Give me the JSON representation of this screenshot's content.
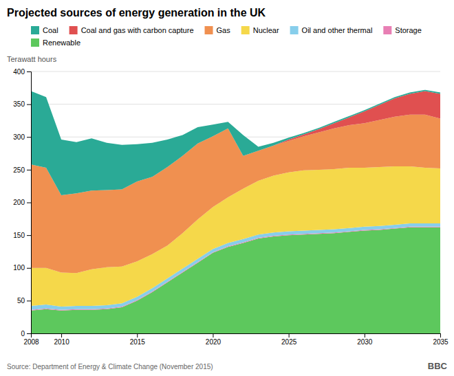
{
  "chart_data": {
    "type": "area",
    "stacked": true,
    "title": "Projected sources of energy generation in the UK",
    "y_label": "Terawatt hours",
    "annotations": [
      "Source: Department of Energy & Climate Change (November 2015)",
      "BBC"
    ],
    "x": [
      2008,
      2009,
      2010,
      2011,
      2012,
      2013,
      2014,
      2015,
      2016,
      2017,
      2018,
      2019,
      2020,
      2021,
      2022,
      2023,
      2024,
      2025,
      2026,
      2027,
      2028,
      2029,
      2030,
      2031,
      2032,
      2033,
      2034,
      2035
    ],
    "xlim": [
      2008,
      2035
    ],
    "xticks": [
      2008,
      2010,
      2015,
      2020,
      2025,
      2030,
      2035
    ],
    "ylim": [
      0,
      400
    ],
    "yticks": [
      0,
      50,
      100,
      150,
      200,
      250,
      300,
      350,
      400
    ],
    "grid": true,
    "legend": "top",
    "series": [
      {
        "name": "Renewable",
        "color": "#5dc85d",
        "values": [
          35,
          37,
          35,
          36,
          36,
          37,
          40,
          50,
          63,
          78,
          93,
          108,
          123,
          132,
          138,
          145,
          148,
          150,
          151,
          152,
          153,
          155,
          157,
          158,
          160,
          162,
          162,
          162
        ]
      },
      {
        "name": "Storage",
        "color": "#e87fb4",
        "values": [
          1,
          1,
          1,
          1,
          1,
          1,
          1,
          1,
          1,
          1,
          1,
          1,
          1,
          1,
          1,
          1,
          1,
          1,
          1,
          1,
          1,
          1,
          1,
          1,
          1,
          1,
          1,
          1
        ]
      },
      {
        "name": "Oil and other thermal",
        "color": "#87ceeb",
        "values": [
          6,
          6,
          5,
          5,
          5,
          5,
          5,
          5,
          5,
          5,
          5,
          5,
          5,
          5,
          5,
          5,
          5,
          5,
          5,
          5,
          5,
          5,
          5,
          5,
          5,
          5,
          5,
          5
        ]
      },
      {
        "name": "Nuclear",
        "color": "#f5d84a",
        "values": [
          58,
          56,
          52,
          50,
          56,
          58,
          56,
          54,
          52,
          50,
          54,
          60,
          64,
          70,
          77,
          82,
          87,
          90,
          92,
          92,
          92,
          92,
          90,
          90,
          89,
          87,
          85,
          84
        ]
      },
      {
        "name": "Gas",
        "color": "#f09050",
        "values": [
          158,
          153,
          118,
          122,
          120,
          118,
          118,
          122,
          118,
          120,
          118,
          116,
          108,
          105,
          50,
          46,
          46,
          48,
          52,
          57,
          62,
          65,
          68,
          72,
          76,
          79,
          81,
          76
        ]
      },
      {
        "name": "Coal and gas with carbon capture",
        "color": "#e05050",
        "values": [
          0,
          0,
          0,
          0,
          0,
          0,
          0,
          0,
          0,
          0,
          0,
          0,
          0,
          0,
          0,
          0,
          0,
          2,
          3,
          5,
          8,
          12,
          18,
          23,
          28,
          32,
          36,
          38
        ]
      },
      {
        "name": "Coal",
        "color": "#2aaa96",
        "values": [
          112,
          108,
          85,
          78,
          80,
          72,
          68,
          57,
          52,
          42,
          32,
          25,
          18,
          10,
          32,
          6,
          4,
          3,
          2,
          2,
          2,
          2,
          2,
          2,
          2,
          2,
          2,
          2
        ]
      }
    ]
  }
}
